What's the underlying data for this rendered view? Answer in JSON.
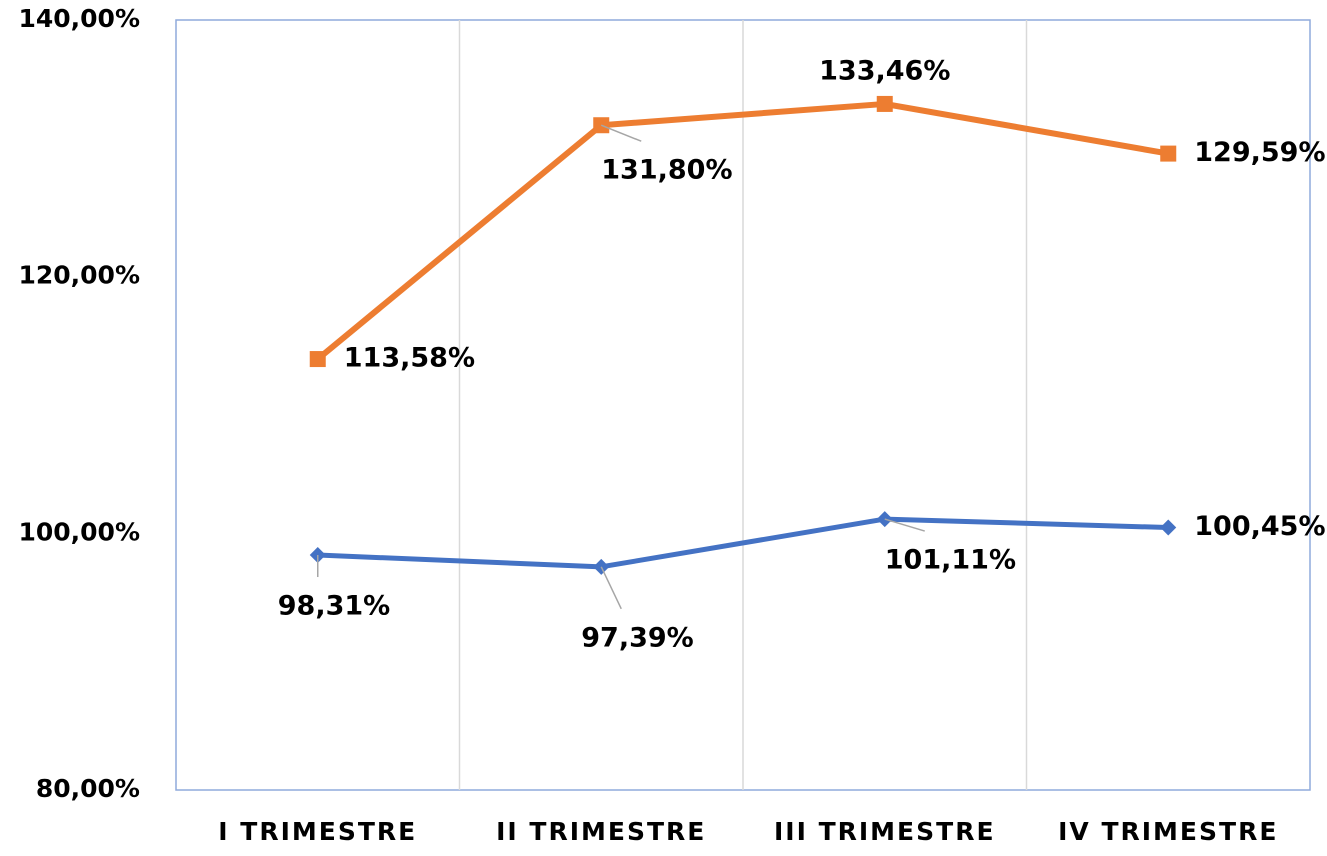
{
  "chart_data": {
    "type": "line",
    "categories": [
      "I TRIMESTRE",
      "II TRIMESTRE",
      "III TRIMESTRE",
      "IV TRIMESTRE"
    ],
    "series": [
      {
        "color": "#ed7d31",
        "marker": "square",
        "values": [
          113.58,
          131.8,
          133.46,
          129.59
        ],
        "value_labels": [
          "113,58%",
          "131,80%",
          "133,46%",
          "129,59%"
        ]
      },
      {
        "color": "#4472c4",
        "marker": "diamond",
        "values": [
          98.31,
          97.39,
          101.11,
          100.45
        ],
        "value_labels": [
          "98,31%",
          "97,39%",
          "101,11%",
          "100,45%"
        ]
      }
    ],
    "ylim": [
      80,
      140
    ],
    "yticks": [
      {
        "value": 80,
        "label": "80,00%"
      },
      {
        "value": 100,
        "label": "100,00%"
      },
      {
        "value": 120,
        "label": "120,00%"
      },
      {
        "value": 140,
        "label": "140,00%"
      }
    ],
    "grid": false
  }
}
